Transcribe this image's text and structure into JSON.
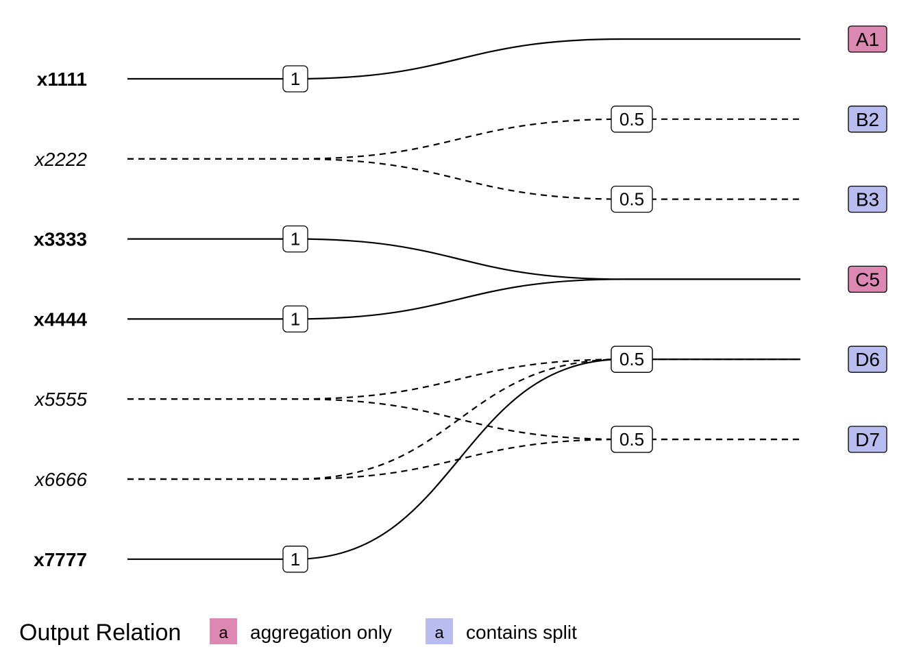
{
  "sources": [
    {
      "label": "x1111",
      "style": "bold"
    },
    {
      "label": "x2222",
      "style": "italic"
    },
    {
      "label": "x3333",
      "style": "bold"
    },
    {
      "label": "x4444",
      "style": "bold"
    },
    {
      "label": "x5555",
      "style": "italic"
    },
    {
      "label": "x6666",
      "style": "italic"
    },
    {
      "label": "x7777",
      "style": "bold"
    }
  ],
  "targets": [
    {
      "label": "A1",
      "relation": "aggregation"
    },
    {
      "label": "B2",
      "relation": "split"
    },
    {
      "label": "B3",
      "relation": "split"
    },
    {
      "label": "C5",
      "relation": "aggregation"
    },
    {
      "label": "D6",
      "relation": "split"
    },
    {
      "label": "D7",
      "relation": "split"
    }
  ],
  "links": [
    {
      "source": "x1111",
      "target": "A1",
      "weight": "1",
      "line": "solid"
    },
    {
      "source": "x2222",
      "target": "B2",
      "weight": "0.5",
      "line": "dashed"
    },
    {
      "source": "x2222",
      "target": "B3",
      "weight": "0.5",
      "line": "dashed"
    },
    {
      "source": "x3333",
      "target": "C5",
      "weight": "1",
      "line": "solid"
    },
    {
      "source": "x4444",
      "target": "C5",
      "weight": "1",
      "line": "solid"
    },
    {
      "source": "x5555",
      "target": "D6",
      "weight": "0.5",
      "line": "dashed"
    },
    {
      "source": "x5555",
      "target": "D7",
      "weight": "0.5",
      "line": "dashed"
    },
    {
      "source": "x6666",
      "target": "D6",
      "weight": "0.5",
      "line": "dashed"
    },
    {
      "source": "x6666",
      "target": "D7",
      "weight": "0.5",
      "line": "dashed"
    },
    {
      "source": "x7777",
      "target": "D6",
      "weight": "1",
      "line": "solid"
    }
  ],
  "legend": {
    "title": "Output Relation",
    "items": [
      {
        "key": "aggregation",
        "swatch_text": "a",
        "label": "aggregation only",
        "color": "#dd88b3"
      },
      {
        "key": "split",
        "swatch_text": "a",
        "label": "contains split",
        "color": "#b8bcef"
      }
    ]
  }
}
